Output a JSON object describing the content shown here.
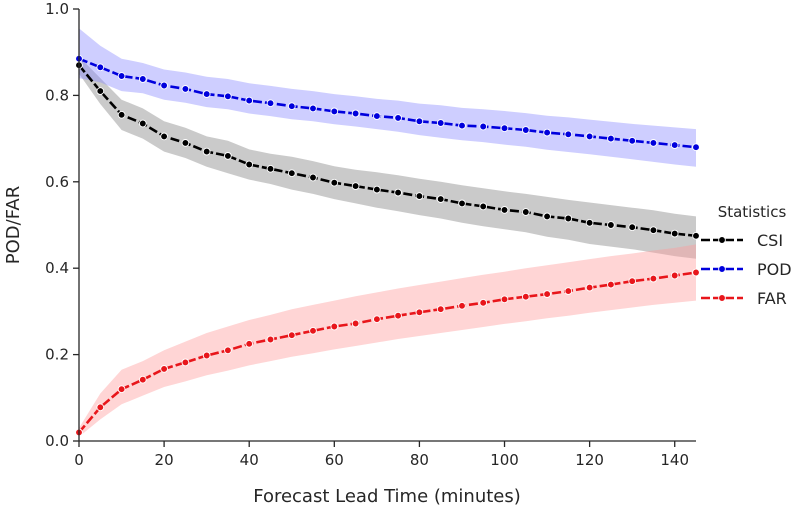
{
  "chart_data": {
    "type": "line",
    "xlabel": "Forecast Lead Time (minutes)",
    "ylabel": "POD/FAR",
    "xlim": [
      0,
      145
    ],
    "ylim": [
      0.0,
      1.0
    ],
    "x_ticks": [
      "0",
      "20",
      "40",
      "60",
      "80",
      "100",
      "120",
      "140"
    ],
    "y_ticks": [
      "0.0",
      "0.2",
      "0.4",
      "0.6",
      "0.8",
      "1.0"
    ],
    "grid": false,
    "legend": {
      "title": "Statistics",
      "placement": "right",
      "entries": [
        "CSI",
        "POD",
        "FAR"
      ]
    },
    "x": [
      0,
      5,
      10,
      15,
      20,
      25,
      30,
      35,
      40,
      45,
      50,
      55,
      60,
      65,
      70,
      75,
      80,
      85,
      90,
      95,
      100,
      105,
      110,
      115,
      120,
      125,
      130,
      135,
      140,
      145
    ],
    "series": [
      {
        "name": "CSI",
        "color": "#000000",
        "band_color": "#808080",
        "values": [
          0.87,
          0.81,
          0.755,
          0.735,
          0.705,
          0.69,
          0.67,
          0.66,
          0.64,
          0.63,
          0.62,
          0.61,
          0.598,
          0.59,
          0.582,
          0.575,
          0.567,
          0.56,
          0.55,
          0.543,
          0.535,
          0.53,
          0.52,
          0.515,
          0.505,
          0.5,
          0.495,
          0.488,
          0.48,
          0.475
        ],
        "lower": [
          0.85,
          0.78,
          0.72,
          0.7,
          0.67,
          0.655,
          0.635,
          0.62,
          0.605,
          0.595,
          0.582,
          0.572,
          0.56,
          0.55,
          0.54,
          0.532,
          0.523,
          0.515,
          0.505,
          0.497,
          0.49,
          0.483,
          0.473,
          0.466,
          0.456,
          0.45,
          0.444,
          0.436,
          0.428,
          0.422
        ],
        "upper": [
          0.89,
          0.84,
          0.79,
          0.77,
          0.74,
          0.725,
          0.705,
          0.695,
          0.675,
          0.665,
          0.658,
          0.648,
          0.636,
          0.628,
          0.622,
          0.615,
          0.607,
          0.6,
          0.592,
          0.585,
          0.578,
          0.572,
          0.565,
          0.558,
          0.552,
          0.546,
          0.54,
          0.534,
          0.526,
          0.52
        ]
      },
      {
        "name": "POD",
        "color": "#0000dd",
        "band_color": "#8a8aff",
        "values": [
          0.885,
          0.865,
          0.845,
          0.838,
          0.823,
          0.815,
          0.803,
          0.798,
          0.788,
          0.782,
          0.775,
          0.77,
          0.763,
          0.758,
          0.752,
          0.748,
          0.74,
          0.736,
          0.73,
          0.728,
          0.724,
          0.72,
          0.714,
          0.71,
          0.705,
          0.7,
          0.695,
          0.69,
          0.685,
          0.68
        ],
        "lower": [
          0.84,
          0.83,
          0.81,
          0.805,
          0.79,
          0.783,
          0.773,
          0.768,
          0.758,
          0.752,
          0.745,
          0.74,
          0.733,
          0.728,
          0.722,
          0.716,
          0.708,
          0.702,
          0.696,
          0.692,
          0.686,
          0.681,
          0.674,
          0.669,
          0.664,
          0.658,
          0.652,
          0.646,
          0.64,
          0.635
        ],
        "upper": [
          0.955,
          0.915,
          0.885,
          0.875,
          0.86,
          0.853,
          0.843,
          0.838,
          0.828,
          0.822,
          0.815,
          0.81,
          0.803,
          0.798,
          0.792,
          0.788,
          0.781,
          0.777,
          0.771,
          0.768,
          0.764,
          0.759,
          0.753,
          0.749,
          0.744,
          0.739,
          0.734,
          0.73,
          0.726,
          0.722
        ]
      },
      {
        "name": "FAR",
        "color": "#e8161b",
        "band_color": "#ff9a9a",
        "values": [
          0.02,
          0.078,
          0.12,
          0.142,
          0.167,
          0.182,
          0.198,
          0.21,
          0.225,
          0.235,
          0.245,
          0.255,
          0.265,
          0.272,
          0.282,
          0.29,
          0.298,
          0.305,
          0.313,
          0.32,
          0.328,
          0.334,
          0.34,
          0.347,
          0.355,
          0.362,
          0.37,
          0.376,
          0.383,
          0.39
        ],
        "lower": [
          0.01,
          0.05,
          0.085,
          0.105,
          0.125,
          0.138,
          0.152,
          0.163,
          0.175,
          0.185,
          0.195,
          0.203,
          0.212,
          0.22,
          0.228,
          0.236,
          0.243,
          0.25,
          0.257,
          0.264,
          0.271,
          0.277,
          0.284,
          0.29,
          0.297,
          0.303,
          0.309,
          0.315,
          0.32,
          0.325
        ],
        "upper": [
          0.03,
          0.11,
          0.165,
          0.185,
          0.21,
          0.23,
          0.25,
          0.265,
          0.28,
          0.292,
          0.305,
          0.315,
          0.325,
          0.335,
          0.344,
          0.353,
          0.361,
          0.369,
          0.377,
          0.385,
          0.392,
          0.4,
          0.407,
          0.414,
          0.421,
          0.428,
          0.434,
          0.441,
          0.447,
          0.455
        ]
      }
    ]
  }
}
